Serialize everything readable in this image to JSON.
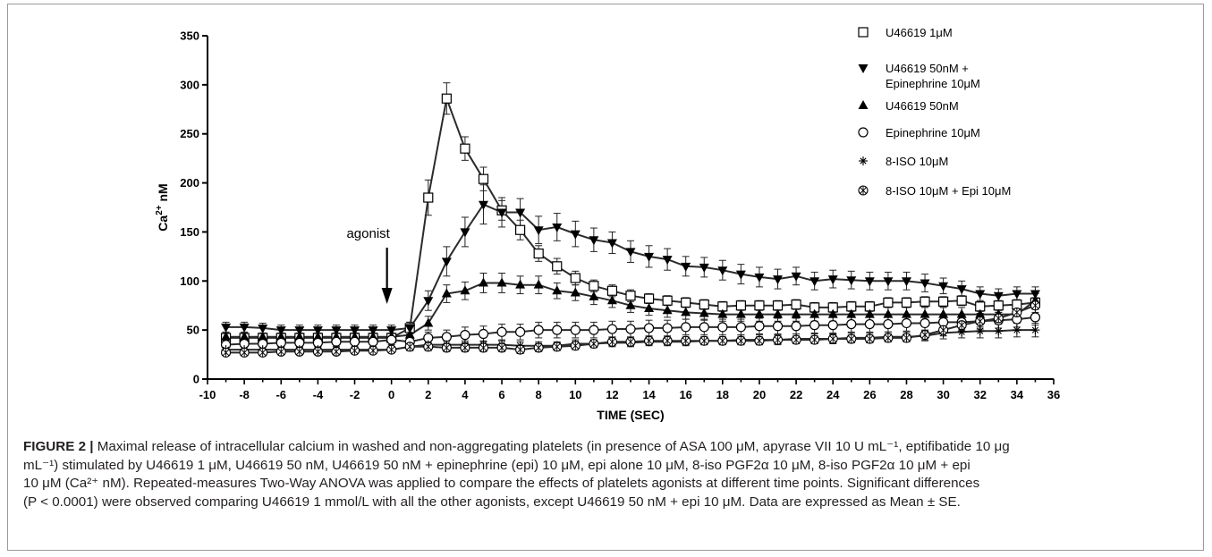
{
  "chart_data": {
    "type": "line",
    "xlabel": "TIME (SEC)",
    "ylabel": "Ca2+ nM",
    "ylabel_parts": {
      "base": "Ca",
      "sup": "2+",
      "unit": " nM"
    },
    "xlim": [
      -10,
      36
    ],
    "ylim": [
      0,
      350
    ],
    "x_ticks": [
      -10,
      -8,
      -6,
      -4,
      -2,
      0,
      2,
      4,
      6,
      8,
      10,
      12,
      14,
      16,
      18,
      20,
      22,
      24,
      26,
      28,
      30,
      32,
      34,
      36
    ],
    "y_ticks": [
      0,
      50,
      100,
      150,
      200,
      250,
      300,
      350
    ],
    "grid": false,
    "legend_position": "top-right",
    "annotation": {
      "text": "agonist",
      "x": 0
    },
    "x": [
      -9,
      -8,
      -7,
      -6,
      -5,
      -4,
      -3,
      -2,
      -1,
      0,
      1,
      2,
      3,
      4,
      5,
      6,
      7,
      8,
      9,
      10,
      11,
      12,
      13,
      14,
      15,
      16,
      17,
      18,
      19,
      20,
      21,
      22,
      23,
      24,
      25,
      26,
      27,
      28,
      29,
      30,
      31,
      32,
      33,
      34,
      35
    ],
    "series": [
      {
        "name": "U46619 1μM",
        "marker": "square-open",
        "values": [
          42,
          42,
          42,
          42,
          42,
          42,
          42,
          42,
          42,
          42,
          52,
          185,
          286,
          235,
          204,
          172,
          152,
          128,
          115,
          103,
          95,
          90,
          85,
          82,
          80,
          78,
          76,
          74,
          75,
          75,
          75,
          76,
          73,
          73,
          74,
          74,
          78,
          78,
          79,
          79,
          80,
          74,
          75,
          76,
          78
        ],
        "errors": [
          3,
          3,
          3,
          3,
          3,
          3,
          3,
          3,
          3,
          3,
          6,
          18,
          16,
          12,
          12,
          10,
          10,
          8,
          8,
          7,
          6,
          6,
          6,
          5,
          5,
          5,
          5,
          5,
          5,
          5,
          5,
          5,
          5,
          5,
          5,
          5,
          5,
          5,
          5,
          5,
          5,
          5,
          5,
          5,
          5
        ]
      },
      {
        "name": "U46619 50nM +\nEpinephrine 10μM",
        "marker": "triangle-down-filled",
        "values": [
          53,
          53,
          52,
          50,
          50,
          50,
          50,
          50,
          50,
          50,
          52,
          80,
          120,
          150,
          178,
          170,
          170,
          152,
          155,
          148,
          142,
          139,
          130,
          125,
          122,
          115,
          114,
          111,
          107,
          104,
          102,
          105,
          100,
          102,
          101,
          100,
          100,
          100,
          98,
          95,
          92,
          87,
          85,
          87,
          87
        ],
        "errors": [
          5,
          5,
          5,
          5,
          5,
          5,
          5,
          5,
          5,
          5,
          6,
          10,
          15,
          15,
          20,
          15,
          14,
          14,
          14,
          13,
          12,
          11,
          11,
          11,
          11,
          10,
          10,
          10,
          10,
          10,
          10,
          9,
          9,
          9,
          9,
          9,
          9,
          9,
          9,
          8,
          8,
          7,
          7,
          7,
          7
        ]
      },
      {
        "name": "U46619 50nM",
        "marker": "triangle-up-filled",
        "values": [
          43,
          43,
          43,
          43,
          43,
          43,
          43,
          43,
          43,
          43,
          45,
          57,
          87,
          90,
          98,
          98,
          96,
          96,
          90,
          88,
          84,
          80,
          75,
          72,
          70,
          68,
          67,
          66,
          66,
          66,
          66,
          66,
          66,
          66,
          66,
          66,
          66,
          66,
          66,
          66,
          66,
          66,
          66,
          66,
          80
        ],
        "errors": [
          4,
          4,
          4,
          4,
          4,
          4,
          4,
          4,
          4,
          4,
          5,
          7,
          9,
          9,
          10,
          10,
          9,
          9,
          8,
          8,
          8,
          7,
          7,
          7,
          7,
          7,
          7,
          7,
          7,
          7,
          7,
          7,
          7,
          7,
          7,
          7,
          7,
          7,
          7,
          7,
          7,
          7,
          7,
          7,
          7
        ]
      },
      {
        "name": "Epinephrine 10μM",
        "marker": "circle-open",
        "values": [
          35,
          36,
          36,
          37,
          37,
          37,
          38,
          38,
          38,
          40,
          38,
          42,
          43,
          45,
          46,
          48,
          48,
          50,
          50,
          50,
          50,
          51,
          51,
          52,
          52,
          53,
          53,
          53,
          53,
          54,
          54,
          54,
          55,
          55,
          56,
          56,
          56,
          57,
          57,
          58,
          58,
          59,
          60,
          61,
          63
        ],
        "errors": [
          5,
          5,
          5,
          5,
          5,
          5,
          5,
          5,
          5,
          5,
          5,
          6,
          7,
          8,
          8,
          8,
          8,
          8,
          8,
          8,
          8,
          8,
          8,
          8,
          8,
          8,
          8,
          8,
          8,
          8,
          8,
          8,
          8,
          8,
          8,
          8,
          8,
          8,
          8,
          8,
          8,
          8,
          8,
          8,
          8
        ]
      },
      {
        "name": "8-ISO 10μM",
        "marker": "asterisk",
        "values": [
          30,
          30,
          30,
          30,
          30,
          30,
          30,
          30,
          30,
          30,
          33,
          35,
          35,
          35,
          35,
          35,
          34,
          34,
          34,
          36,
          36,
          37,
          37,
          38,
          38,
          38,
          39,
          39,
          40,
          40,
          40,
          41,
          41,
          41,
          42,
          42,
          43,
          43,
          44,
          47,
          48,
          49,
          49,
          50,
          50
        ],
        "errors": [
          3,
          3,
          3,
          3,
          3,
          3,
          3,
          3,
          3,
          3,
          4,
          4,
          4,
          4,
          4,
          4,
          4,
          4,
          4,
          4,
          4,
          4,
          4,
          4,
          4,
          4,
          4,
          4,
          5,
          5,
          5,
          5,
          5,
          5,
          5,
          5,
          5,
          5,
          5,
          6,
          6,
          7,
          7,
          7,
          7
        ]
      },
      {
        "name": "8-ISO 10μM + Epi 10μM",
        "marker": "circle-cross",
        "values": [
          27,
          27,
          27,
          28,
          28,
          28,
          28,
          29,
          29,
          30,
          33,
          33,
          32,
          32,
          32,
          32,
          30,
          32,
          33,
          34,
          36,
          38,
          38,
          39,
          39,
          39,
          39,
          39,
          39,
          39,
          40,
          40,
          40,
          41,
          41,
          41,
          42,
          42,
          45,
          50,
          55,
          59,
          62,
          68,
          75
        ],
        "errors": [
          3,
          3,
          3,
          3,
          3,
          3,
          3,
          3,
          3,
          3,
          4,
          4,
          4,
          4,
          4,
          4,
          4,
          4,
          4,
          4,
          4,
          4,
          4,
          4,
          4,
          4,
          4,
          4,
          4,
          4,
          4,
          4,
          4,
          4,
          4,
          4,
          4,
          4,
          5,
          6,
          6,
          6,
          6,
          6,
          7
        ]
      }
    ]
  },
  "caption": {
    "lead": "FIGURE 2 |",
    "lines": [
      "Maximal release of intracellular calcium in washed and non-aggregating platelets (in presence of ASA 100 μM, apyrase VII 10 U mL⁻¹, eptifibatide 10 μg",
      "mL⁻¹) stimulated by U46619 1 μM, U46619 50 nM, U46619 50 nM + epinephrine (epi) 10 μM, epi alone 10 μM, 8-iso PGF2α 10 μM, 8-iso PGF2α 10 μM + epi",
      "10 μM (Ca²⁺ nM). Repeated-measures Two-Way ANOVA was applied to compare the effects of platelets agonists at different time points. Significant differences",
      "(P < 0.0001) were observed comparing U46619 1 mmol/L with all the other agonists, except U46619 50 nM + epi 10 μM. Data are expressed as Mean ± SE."
    ]
  }
}
